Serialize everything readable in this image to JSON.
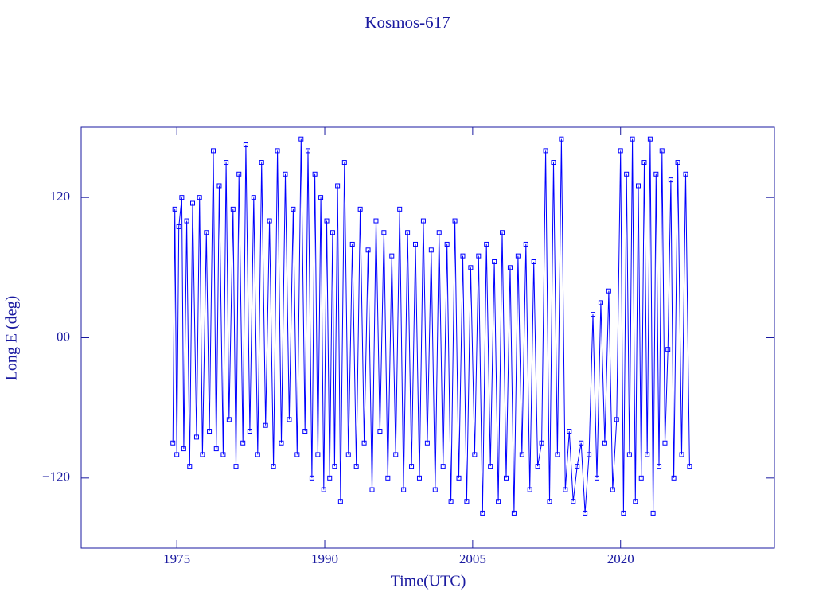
{
  "chart_data": {
    "type": "line",
    "title": "Kosmos-617",
    "x_label": "Time(UTC)",
    "y_label": "Long E (deg)",
    "xlim": [
      1965.3,
      2035.6
    ],
    "ylim": [
      -180,
      180
    ],
    "xticks": [
      1975,
      1990,
      2005,
      2020
    ],
    "yticks": [
      {
        "value": -120,
        "label": "−120"
      },
      {
        "value": 0,
        "label": "00"
      },
      120
    ],
    "color": "#0000ff",
    "markers": true,
    "x": [
      1974.6,
      1974.8,
      1975.0,
      1975.2,
      1975.5,
      1975.7,
      1976.0,
      1976.3,
      1976.6,
      1977.0,
      1977.3,
      1977.6,
      1978.0,
      1978.3,
      1978.7,
      1979.0,
      1979.3,
      1979.7,
      1980.0,
      1980.3,
      1980.7,
      1981.0,
      1981.3,
      1981.7,
      1982.0,
      1982.4,
      1982.8,
      1983.2,
      1983.6,
      1984.0,
      1984.4,
      1984.8,
      1985.2,
      1985.6,
      1986.0,
      1986.4,
      1986.8,
      1987.2,
      1987.6,
      1988.0,
      1988.3,
      1988.7,
      1989.0,
      1989.3,
      1989.6,
      1989.9,
      1990.2,
      1990.5,
      1990.8,
      1991.0,
      1991.3,
      1991.6,
      1992.0,
      1992.4,
      1992.8,
      1993.2,
      1993.6,
      1994.0,
      1994.4,
      1994.8,
      1995.2,
      1995.6,
      1996.0,
      1996.4,
      1996.8,
      1997.2,
      1997.6,
      1998.0,
      1998.4,
      1998.8,
      1999.2,
      1999.6,
      2000.0,
      2000.4,
      2000.8,
      2001.2,
      2001.6,
      2002.0,
      2002.4,
      2002.8,
      2003.2,
      2003.6,
      2004.0,
      2004.4,
      2004.8,
      2005.2,
      2005.6,
      2006.0,
      2006.4,
      2006.8,
      2007.2,
      2007.6,
      2008.0,
      2008.4,
      2008.8,
      2009.2,
      2009.6,
      2010.0,
      2010.4,
      2010.8,
      2011.2,
      2011.6,
      2012.0,
      2012.4,
      2012.8,
      2013.2,
      2013.6,
      2014.0,
      2014.4,
      2014.8,
      2015.2,
      2015.6,
      2016.0,
      2016.4,
      2016.8,
      2017.2,
      2017.6,
      2018.0,
      2018.4,
      2018.8,
      2019.2,
      2019.6,
      2020.0,
      2020.3,
      2020.6,
      2020.9,
      2021.2,
      2021.5,
      2021.8,
      2022.1,
      2022.4,
      2022.7,
      2023.0,
      2023.3,
      2023.6,
      2023.9,
      2024.2,
      2024.5,
      2024.8,
      2025.1,
      2025.4,
      2025.8,
      2026.2,
      2026.6,
      2027.0
    ],
    "y": [
      -90,
      110,
      -100,
      95,
      120,
      -95,
      100,
      -110,
      115,
      -85,
      120,
      -100,
      90,
      -80,
      160,
      -95,
      130,
      -100,
      150,
      -70,
      110,
      -110,
      140,
      -90,
      165,
      -80,
      120,
      -100,
      150,
      -75,
      100,
      -110,
      160,
      -90,
      140,
      -70,
      110,
      -100,
      170,
      -80,
      160,
      -120,
      140,
      -100,
      120,
      -130,
      100,
      -120,
      90,
      -110,
      130,
      -140,
      150,
      -100,
      80,
      -110,
      110,
      -90,
      75,
      -130,
      100,
      -80,
      90,
      -120,
      70,
      -100,
      110,
      -130,
      90,
      -110,
      80,
      -120,
      100,
      -90,
      75,
      -130,
      90,
      -110,
      80,
      -140,
      100,
      -120,
      70,
      -140,
      60,
      -100,
      70,
      -150,
      80,
      -110,
      65,
      -140,
      90,
      -120,
      60,
      -150,
      70,
      -100,
      80,
      -130,
      65,
      -110,
      -90,
      160,
      -140,
      150,
      -100,
      170,
      -130,
      -80,
      -140,
      -110,
      -90,
      -150,
      -100,
      20,
      -120,
      30,
      -90,
      40,
      -130,
      -70,
      160,
      -150,
      140,
      -100,
      170,
      -140,
      130,
      -120,
      150,
      -100,
      170,
      -150,
      140,
      -110,
      160,
      -90,
      -10,
      135,
      -120,
      150,
      -100,
      140,
      -110
    ]
  }
}
